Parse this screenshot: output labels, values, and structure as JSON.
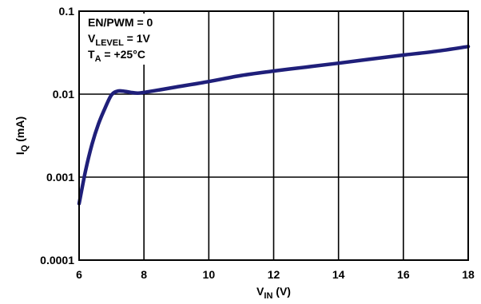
{
  "chart_data": {
    "type": "line",
    "title": "",
    "xlabel": {
      "main": "V",
      "sub": "IN",
      "unit": " (V)"
    },
    "ylabel": {
      "main": "I",
      "sub": "Q",
      "unit": " (mA)"
    },
    "xlim": [
      6,
      18
    ],
    "ylim": [
      0.0001,
      0.1
    ],
    "yscale": "log",
    "grid": true,
    "x_ticks": [
      6,
      8,
      10,
      12,
      14,
      16,
      18
    ],
    "x_tick_labels": [
      "6",
      "8",
      "10",
      "12",
      "14",
      "16",
      "18"
    ],
    "y_ticks": [
      0.1,
      0.01,
      0.001,
      0.0001
    ],
    "y_tick_labels": [
      "0.1",
      "0.01",
      "0.001",
      "0.0001"
    ],
    "annotations": [
      {
        "main": "EN/PWM = 0",
        "sub": "",
        "rest": ""
      },
      {
        "main": "V",
        "sub": "LEVEL",
        "rest": " = 1V"
      },
      {
        "main": "T",
        "sub": "A",
        "rest": " = +25°C"
      }
    ],
    "series": [
      {
        "color": "#1f1f7a",
        "x": [
          6.0,
          6.2,
          6.4,
          6.6,
          6.8,
          7.0,
          7.2,
          7.4,
          7.6,
          7.8,
          8.0,
          8.5,
          9,
          10,
          11,
          12,
          13,
          14,
          15,
          16,
          17,
          18
        ],
        "y": [
          0.00048,
          0.0012,
          0.0025,
          0.0044,
          0.0068,
          0.0098,
          0.0109,
          0.0108,
          0.0105,
          0.0103,
          0.0105,
          0.0113,
          0.0122,
          0.0142,
          0.0168,
          0.019,
          0.0212,
          0.0236,
          0.0265,
          0.0296,
          0.0328,
          0.0375
        ]
      }
    ]
  }
}
